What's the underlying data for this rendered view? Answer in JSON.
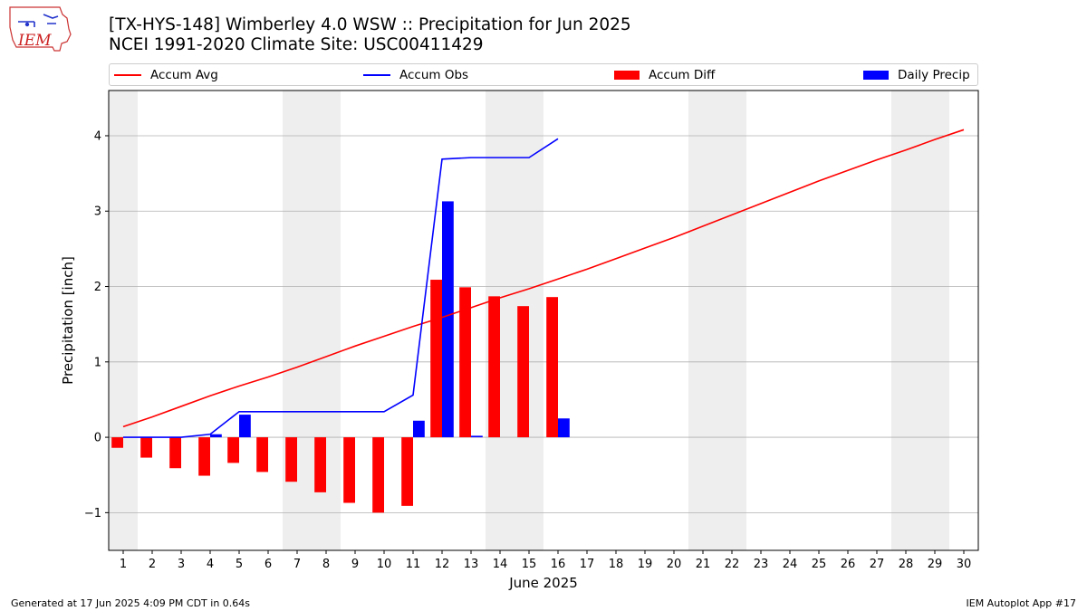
{
  "header": {
    "logo_text": "IEM",
    "title_line1": "[TX-HYS-148] Wimberley 4.0 WSW :: Precipitation for Jun 2025",
    "title_line2": "NCEI 1991-2020 Climate Site: USC00411429"
  },
  "legend": {
    "accum_avg": "Accum Avg",
    "accum_obs": "Accum Obs",
    "accum_diff": "Accum Diff",
    "daily_precip": "Daily Precip"
  },
  "colors": {
    "avg": "#ff0000",
    "obs": "#0000ff",
    "diff": "#ff0000",
    "daily": "#0000ff",
    "weekend_shade": "#eeeeee",
    "grid": "#b0b0b0"
  },
  "footer": {
    "left": "Generated at 17 Jun 2025 4:09 PM CDT in 0.64s",
    "right": "IEM Autoplot App #17"
  },
  "chart_data": {
    "type": "bar",
    "xlabel": "June 2025",
    "ylabel": "Precipitation [inch]",
    "xlim": [
      0.5,
      30.5
    ],
    "ylim": [
      -1.5,
      4.6
    ],
    "yticks": [
      -1,
      0,
      1,
      2,
      3,
      4
    ],
    "ytick_labels": [
      "−1",
      "0",
      "1",
      "2",
      "3",
      "4"
    ],
    "days": [
      1,
      2,
      3,
      4,
      5,
      6,
      7,
      8,
      9,
      10,
      11,
      12,
      13,
      14,
      15,
      16,
      17,
      18,
      19,
      20,
      21,
      22,
      23,
      24,
      25,
      26,
      27,
      28,
      29,
      30
    ],
    "weekend_shading": [
      [
        0.5,
        1.5
      ],
      [
        6.5,
        8.5
      ],
      [
        13.5,
        15.5
      ],
      [
        20.5,
        22.5
      ],
      [
        27.5,
        29.5
      ]
    ],
    "grid": true,
    "legend_position": "top",
    "series": [
      {
        "name": "Accum Avg",
        "type": "line",
        "x": [
          1,
          2,
          3,
          4,
          5,
          6,
          7,
          8,
          9,
          10,
          11,
          12,
          13,
          14,
          15,
          16,
          17,
          18,
          19,
          20,
          21,
          22,
          23,
          24,
          25,
          26,
          27,
          28,
          29,
          30
        ],
        "values": [
          0.14,
          0.27,
          0.41,
          0.55,
          0.68,
          0.8,
          0.93,
          1.07,
          1.21,
          1.34,
          1.47,
          1.59,
          1.72,
          1.85,
          1.97,
          2.1,
          2.23,
          2.37,
          2.51,
          2.65,
          2.8,
          2.95,
          3.1,
          3.25,
          3.4,
          3.54,
          3.68,
          3.81,
          3.95,
          4.08
        ]
      },
      {
        "name": "Accum Obs",
        "type": "line",
        "x": [
          1,
          2,
          3,
          4,
          5,
          6,
          7,
          8,
          9,
          10,
          11,
          12,
          13,
          14,
          15,
          16
        ],
        "values": [
          0.0,
          0.0,
          0.0,
          0.04,
          0.34,
          0.34,
          0.34,
          0.34,
          0.34,
          0.34,
          0.56,
          3.69,
          3.71,
          3.71,
          3.71,
          3.96
        ]
      },
      {
        "name": "Accum Diff",
        "type": "bar",
        "x": [
          1,
          2,
          3,
          4,
          5,
          6,
          7,
          8,
          9,
          10,
          11,
          12,
          13,
          14,
          15,
          16
        ],
        "values": [
          -0.14,
          -0.27,
          -0.41,
          -0.51,
          -0.34,
          -0.46,
          -0.59,
          -0.73,
          -0.87,
          -1.0,
          -0.91,
          2.09,
          1.99,
          1.87,
          1.74,
          1.86
        ]
      },
      {
        "name": "Daily Precip",
        "type": "bar",
        "x": [
          1,
          2,
          3,
          4,
          5,
          6,
          7,
          8,
          9,
          10,
          11,
          12,
          13,
          14,
          15,
          16
        ],
        "values": [
          0,
          0,
          0,
          0.04,
          0.3,
          0,
          0,
          0,
          0,
          0,
          0.22,
          3.13,
          0.02,
          0,
          0,
          0.25
        ]
      }
    ]
  }
}
